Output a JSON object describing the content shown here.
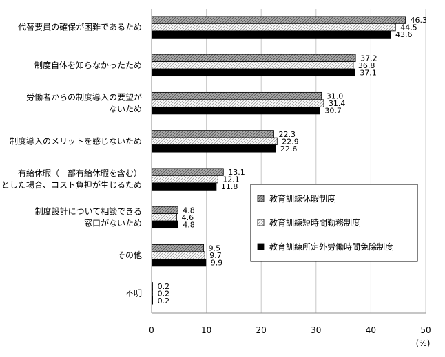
{
  "chart_data": {
    "type": "bar",
    "orientation": "horizontal",
    "categories": [
      [
        "代替要員の確保が困難であるため"
      ],
      [
        "制度自体を知らなかったため"
      ],
      [
        "労働者からの制度導入の要望が",
        "ないため"
      ],
      [
        "制度導入のメリットを感じないため"
      ],
      [
        "有給休暇（一部有給休暇を含む）",
        "とした場合、コスト負担が生じるため"
      ],
      [
        "制度設計について相談できる",
        "窓口がないため"
      ],
      [
        "その他"
      ],
      [
        "不明"
      ]
    ],
    "series": [
      {
        "name": "教育訓練休暇制度",
        "values": [
          46.3,
          37.2,
          31.0,
          22.3,
          13.1,
          4.8,
          9.5,
          0.2
        ],
        "value_labels": [
          "46.3",
          "37.2",
          "31.0",
          "22.3",
          "13.1",
          "4.8",
          "9.5",
          "0.2"
        ]
      },
      {
        "name": "教育訓練短時間勤務制度",
        "values": [
          44.5,
          36.8,
          31.4,
          22.9,
          12.1,
          4.6,
          9.7,
          0.2
        ],
        "value_labels": [
          "44.5",
          "36.8",
          "31.4",
          "22.9",
          "12.1",
          "4.6",
          "9.7",
          "0.2"
        ]
      },
      {
        "name": "教育訓練所定外労働時間免除制度",
        "values": [
          43.6,
          37.1,
          30.7,
          22.6,
          11.8,
          4.8,
          9.9,
          0.2
        ],
        "value_labels": [
          "43.6",
          "37.1",
          "30.7",
          "22.6",
          "11.8",
          "4.8",
          "9.9",
          "0.2"
        ]
      }
    ],
    "xlim": [
      0,
      50
    ],
    "xticks": [
      "0",
      "10",
      "20",
      "30",
      "40",
      "50"
    ],
    "xunit": "(%)",
    "grid": true,
    "legend_position": "right",
    "series_fills": [
      "gray-diagonal-hatch",
      "white-diagonal-hatch",
      "black"
    ]
  }
}
